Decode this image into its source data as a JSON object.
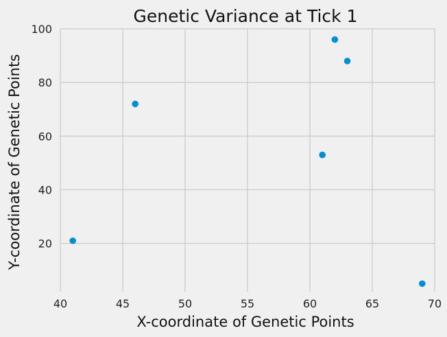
{
  "chart_data": {
    "type": "scatter",
    "title": "Genetic Variance at Tick 1",
    "xlabel": "X-coordinate of Genetic Points",
    "ylabel": "Y-coordinate of Genetic Points",
    "xlim": [
      40,
      70
    ],
    "ylim": [
      2,
      100
    ],
    "xticks": [
      40,
      45,
      50,
      55,
      60,
      65,
      70
    ],
    "yticks": [
      20,
      40,
      60,
      80,
      100
    ],
    "xtick_labels": [
      "40",
      "45",
      "50",
      "55",
      "60",
      "65",
      "70"
    ],
    "ytick_labels": [
      "20",
      "40",
      "60",
      "80",
      "100"
    ],
    "grid": true,
    "points": [
      {
        "x": 62,
        "y": 96
      },
      {
        "x": 63,
        "y": 88
      },
      {
        "x": 46,
        "y": 72
      },
      {
        "x": 61,
        "y": 53
      },
      {
        "x": 41,
        "y": 21
      },
      {
        "x": 69,
        "y": 5
      }
    ],
    "colors": {
      "background": "#f0f0f0",
      "grid": "#cbcbcb",
      "marker": "#008fd5"
    }
  }
}
